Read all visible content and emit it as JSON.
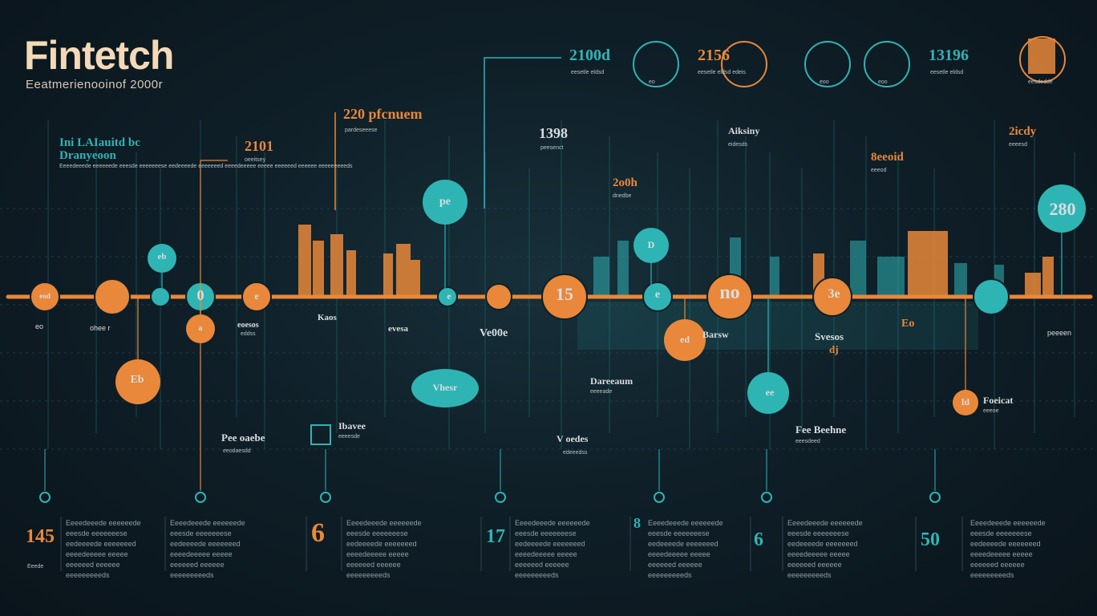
{
  "header": {
    "title": "Fintetch",
    "subtitle": "Eeatmerienooinof 2000r"
  },
  "top_row": [
    {
      "label": "2100d",
      "text": "eesetle eldsd"
    },
    {
      "label": "eo",
      "text": ""
    },
    {
      "label": "2156",
      "text": "eesetle eldsd edeis"
    },
    {
      "label": "eoo",
      "text": ""
    },
    {
      "label": "eoo",
      "text": ""
    },
    {
      "label": "13196",
      "text": "eesetle eldsd"
    },
    {
      "label": "",
      "text": "eesdedde"
    }
  ],
  "upper_labels": [
    {
      "label": "Ini LAIauitd bc",
      "sub": "Dranyeoon"
    },
    {
      "label": "2101",
      "sub": "oeeitsey"
    },
    {
      "label": "220 pfcnuem",
      "sub": "pardeseeese"
    },
    {
      "label": "1398",
      "sub": "peesenct"
    },
    {
      "label": "2o0h",
      "sub": "dnedbe"
    },
    {
      "label": "Aiksiny",
      "sub": "eidesds"
    },
    {
      "label": "8eeoid",
      "sub": "eeeod"
    },
    {
      "label": "2icdy",
      "sub": "eeeesd"
    }
  ],
  "nodes": [
    {
      "label": "eod",
      "tone": "o"
    },
    {
      "label": "",
      "tone": "o"
    },
    {
      "label": "0",
      "tone": "t"
    },
    {
      "label": "e",
      "tone": "o"
    },
    {
      "label": "e",
      "tone": "t"
    },
    {
      "label": "15",
      "tone": "o"
    },
    {
      "label": "e",
      "tone": "t"
    },
    {
      "label": "no",
      "tone": "o"
    },
    {
      "label": "3e",
      "tone": "o"
    },
    {
      "label": "",
      "tone": "t"
    }
  ],
  "bubbles": [
    {
      "label": "pe",
      "tone": "t"
    },
    {
      "label": "eb",
      "tone": "o"
    },
    {
      "label": "D",
      "tone": "t"
    },
    {
      "label": "a",
      "tone": "t"
    },
    {
      "label": "Eb",
      "tone": "o"
    },
    {
      "label": "ed",
      "tone": "o"
    },
    {
      "label": "Vhesr",
      "tone": "t"
    },
    {
      "label": "ee",
      "tone": "t"
    },
    {
      "label": "280",
      "tone": "t"
    },
    {
      "label": "ld",
      "tone": "o"
    }
  ],
  "lower_labels": [
    {
      "label": "eo",
      "sub": "ohee r"
    },
    {
      "label": "eoesos",
      "sub": "eddss"
    },
    {
      "label": "Kaos",
      "sub": ""
    },
    {
      "label": "evesa",
      "sub": ""
    },
    {
      "label": "Ve00e",
      "sub": ""
    },
    {
      "label": "Barsw",
      "sub": ""
    },
    {
      "label": "Svesos",
      "sub": "dj"
    },
    {
      "label": "Eo",
      "sub": ""
    },
    {
      "label": "peeeen",
      "sub": ""
    }
  ],
  "mid_labels": [
    {
      "label": "Pee oaebe",
      "sub": "eeodaesdd"
    },
    {
      "label": "Ibavee",
      "sub": "eeeesde"
    },
    {
      "label": "Dareeaum",
      "sub": "eeeeade"
    },
    {
      "label": "V oedes",
      "sub": "edeeedss"
    },
    {
      "label": "Fee Beehne",
      "sub": "eeesdeed"
    },
    {
      "label": "Foeicat",
      "sub": "eeeoe"
    }
  ],
  "bottom_columns": [
    {
      "num": "145",
      "tone": "o",
      "sub": "Eeede"
    },
    {
      "num": "",
      "tone": "w",
      "sub": ""
    },
    {
      "num": "6",
      "tone": "o",
      "sub": ""
    },
    {
      "num": "17",
      "tone": "t",
      "sub": ""
    },
    {
      "num": "8",
      "tone": "t",
      "sub": ""
    },
    {
      "num": "6",
      "tone": "t",
      "sub": ""
    },
    {
      "num": "50",
      "tone": "t",
      "sub": ""
    }
  ],
  "column_text": "Eeeedeeede eeeeeede eeesde eeeeeeese eedeeeede eeeeeeed eeeedeeeee eeeee eeeeeed eeeeee eeeeeeeeeds",
  "colors": {
    "orange": "#e9883a",
    "teal": "#2fb4b4",
    "bg": "#0f1f28"
  }
}
